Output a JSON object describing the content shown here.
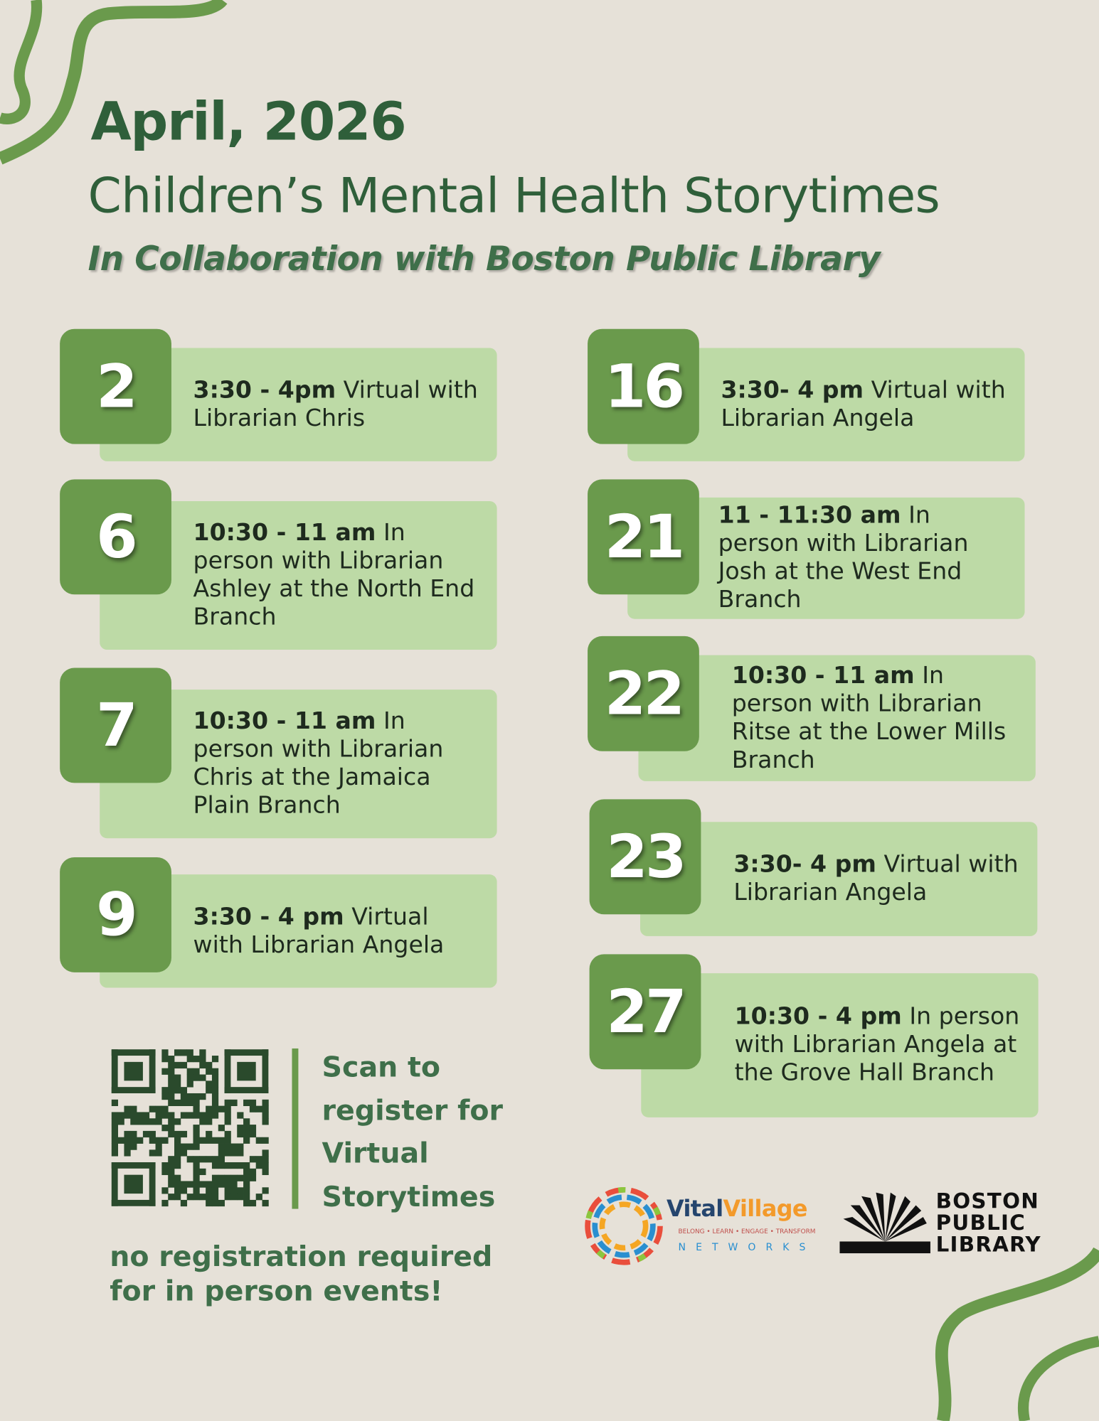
{
  "header": {
    "title": "April, 2026",
    "subtitle": "Children’s Mental Health Storytimes",
    "tagline": "In Collaboration with Boston Public Library"
  },
  "events": [
    {
      "day": "2",
      "time": "3:30 - 4pm",
      "details": "Virtual with Librarian Chris"
    },
    {
      "day": "6",
      "time": "10:30 - 11 am",
      "details": "In person with Librarian Ashley at the North End Branch"
    },
    {
      "day": "7",
      "time": "10:30 - 11 am",
      "details": "In person with Librarian Chris at the Jamaica Plain Branch"
    },
    {
      "day": "9",
      "time": "3:30 - 4 pm",
      "details": "Virtual with Librarian Angela"
    },
    {
      "day": "16",
      "time": "3:30- 4 pm",
      "details": "Virtual with Librarian Angela"
    },
    {
      "day": "21",
      "time": "11 - 11:30 am",
      "details": "In person with Librarian Josh at the West End Branch"
    },
    {
      "day": "22",
      "time": "10:30 - 11 am",
      "details": "In person with Librarian Ritse at the Lower Mills Branch"
    },
    {
      "day": "23",
      "time": "3:30- 4 pm",
      "details": "Virtual with Librarian Angela"
    },
    {
      "day": "27",
      "time": "10:30 - 4 pm",
      "details": "In person with Librarian Angela at the Grove Hall Branch"
    }
  ],
  "registration": {
    "scan_text": "Scan to register for Virtual Storytimes",
    "note": "no registration required for in person events!"
  },
  "logos": {
    "vital": "Vital",
    "village": "Village",
    "vv_tagline": "BELONG • LEARN • ENGAGE • TRANSFORM",
    "networks": "NETWORKS",
    "bpl": [
      "BOSTON",
      "PUBLIC",
      "LIBRARY"
    ]
  }
}
